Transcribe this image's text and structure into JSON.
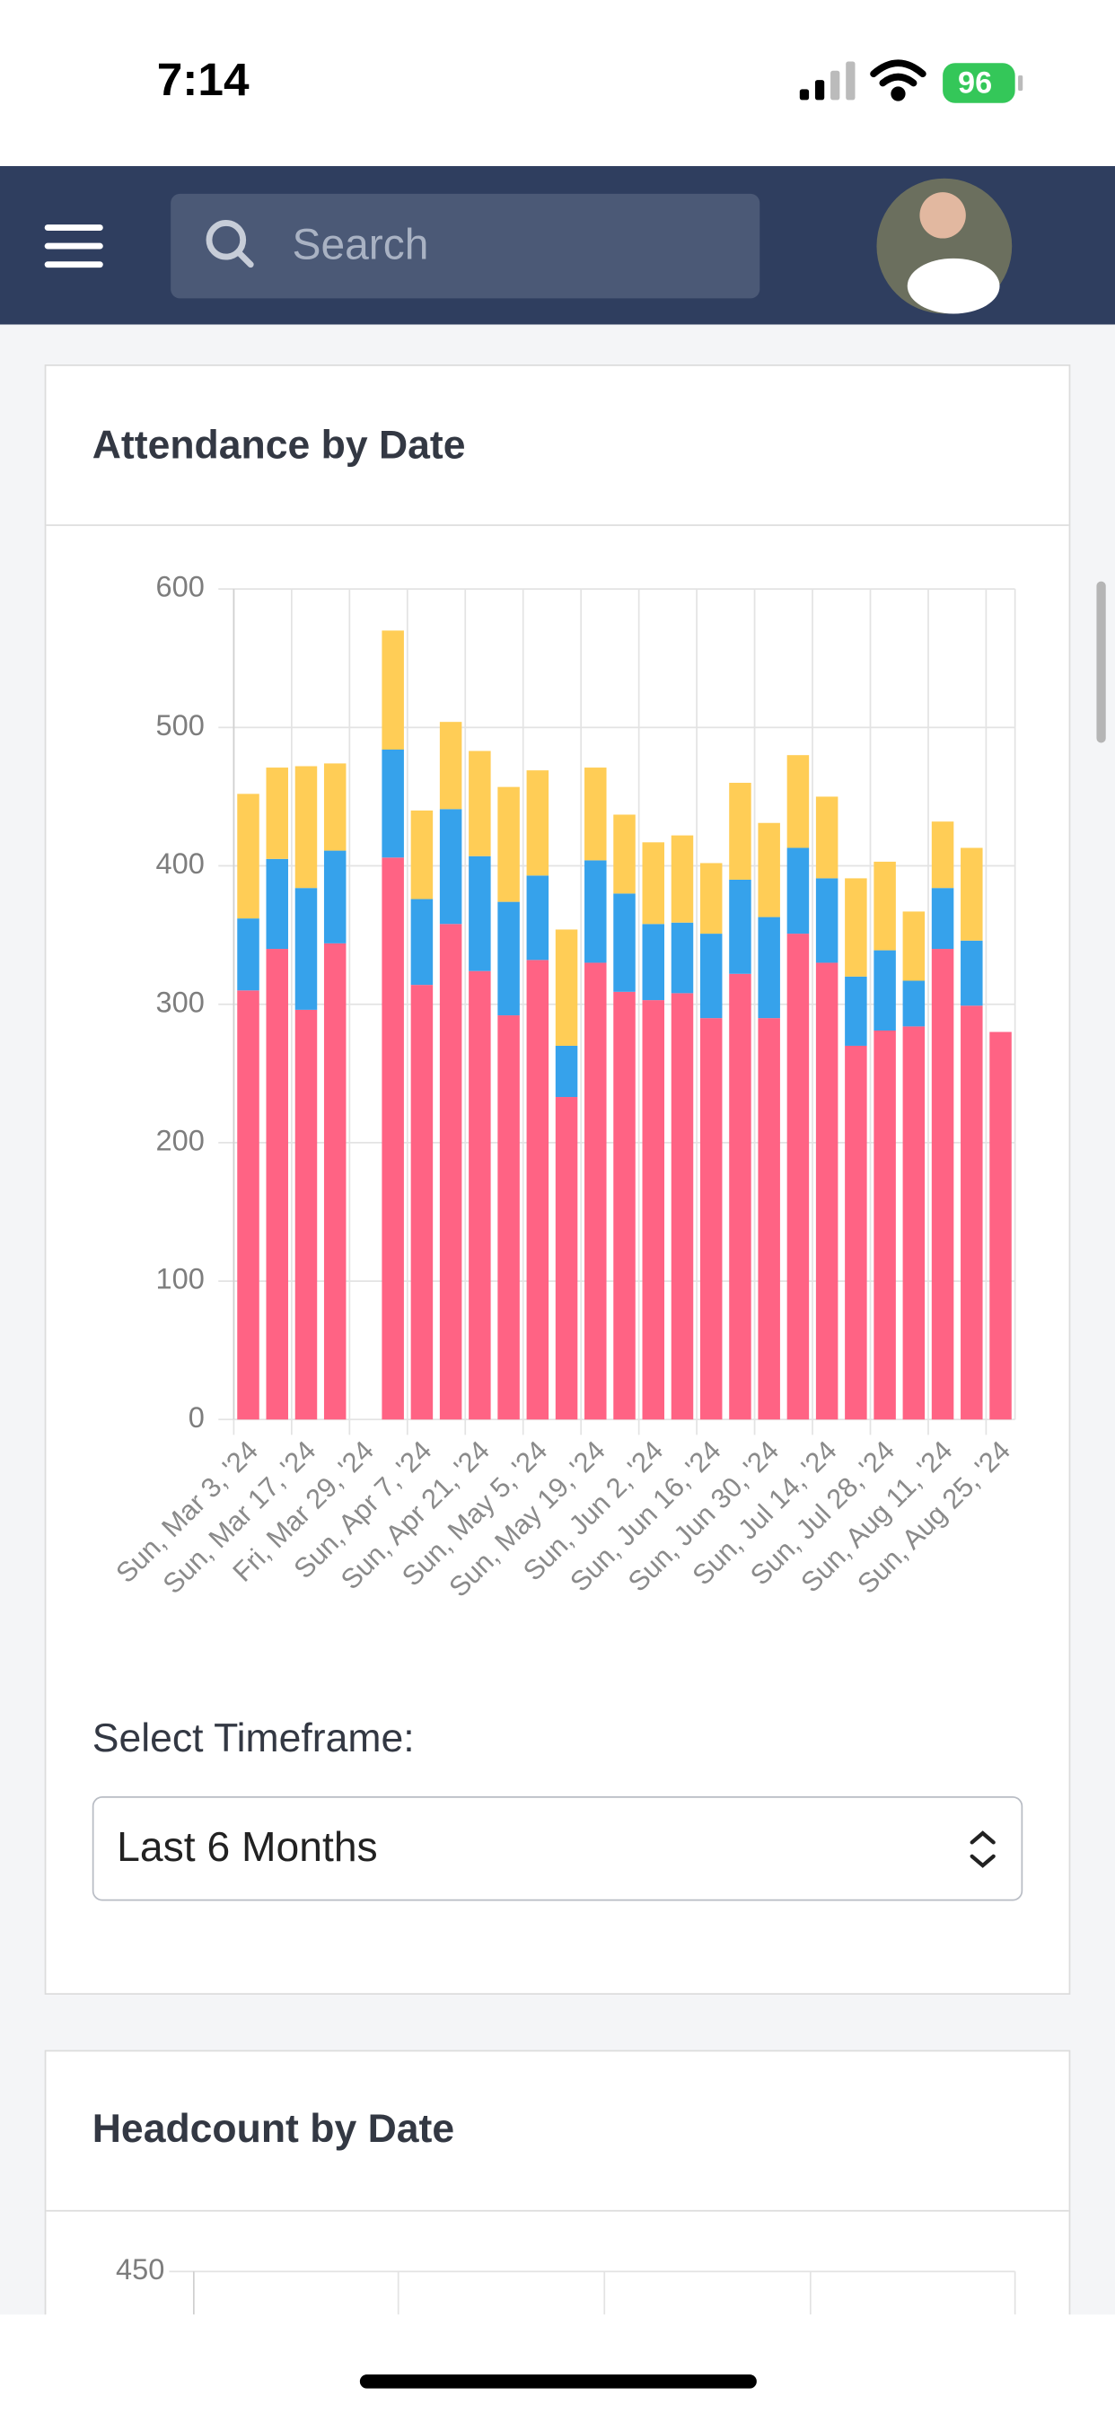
{
  "status_bar": {
    "time": "7:14",
    "battery": "96"
  },
  "nav": {
    "search_placeholder": "Search"
  },
  "chart_data": {
    "type": "stacked_bar",
    "title": "Attendance by Date",
    "categories": [
      "Sun, Mar 3, '24",
      null,
      "Sun, Mar 17, '24",
      null,
      "Fri, Mar 29, '24",
      null,
      "Sun, Apr 7, '24",
      null,
      "Sun, Apr 21, '24",
      null,
      "Sun, May 5, '24",
      null,
      "Sun, May 19, '24",
      null,
      "Sun, Jun 2, '24",
      null,
      "Sun, Jun 16, '24",
      null,
      "Sun, Jun 30, '24",
      null,
      "Sun, Jul 14, '24",
      null,
      "Sun, Jul 28, '24",
      null,
      "Sun, Aug 11, '24",
      null,
      "Sun, Aug 25, '24"
    ],
    "series": [
      {
        "color": "#ff6384",
        "values": [
          310,
          340,
          296,
          344,
          null,
          406,
          314,
          358,
          324,
          292,
          332,
          233,
          330,
          309,
          303,
          308,
          290,
          322,
          290,
          351,
          330,
          270,
          281,
          284,
          340,
          299,
          280
        ]
      },
      {
        "color": "#36a2eb",
        "values": [
          52,
          65,
          88,
          67,
          null,
          78,
          62,
          83,
          83,
          82,
          61,
          37,
          74,
          71,
          55,
          51,
          61,
          68,
          73,
          62,
          61,
          50,
          58,
          33,
          44,
          47,
          null
        ]
      },
      {
        "color": "#ffcd56",
        "values": [
          90,
          66,
          88,
          63,
          null,
          86,
          64,
          63,
          76,
          83,
          76,
          84,
          67,
          57,
          59,
          63,
          51,
          70,
          68,
          67,
          59,
          71,
          64,
          50,
          48,
          67,
          null
        ]
      }
    ],
    "ylim": [
      0,
      600
    ],
    "yticks": [
      0,
      100,
      200,
      300,
      400,
      500,
      600
    ],
    "grid": true
  },
  "timeframe": {
    "label": "Select Timeframe:",
    "selected": "Last 6 Months"
  },
  "headcount": {
    "title": "Headcount by Date",
    "yticks": [
      450
    ]
  }
}
